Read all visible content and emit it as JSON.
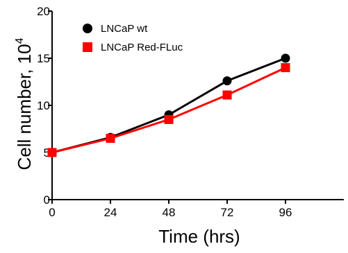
{
  "chart_data": {
    "type": "line",
    "title": "",
    "xlabel": "Time (hrs)",
    "ylabel_base": "Cell number, 10",
    "ylabel_exponent": "4",
    "x": [
      0,
      24,
      48,
      72,
      96
    ],
    "x_ticks": [
      "0",
      "24",
      "48",
      "72",
      "96"
    ],
    "y_ticks": [
      "0",
      "5",
      "10",
      "15",
      "20"
    ],
    "xlim": [
      0,
      120
    ],
    "ylim": [
      0,
      20
    ],
    "grid": false,
    "legend_position": "top-left",
    "series": [
      {
        "name": "LNCaP wt",
        "color": "#000000",
        "marker": "circle",
        "values": [
          5.0,
          6.6,
          9.0,
          12.6,
          15.0
        ]
      },
      {
        "name": "LNCaP Red-FLuc",
        "color": "#ff0000",
        "marker": "square",
        "values": [
          5.0,
          6.5,
          8.5,
          11.1,
          14.0
        ]
      }
    ]
  }
}
